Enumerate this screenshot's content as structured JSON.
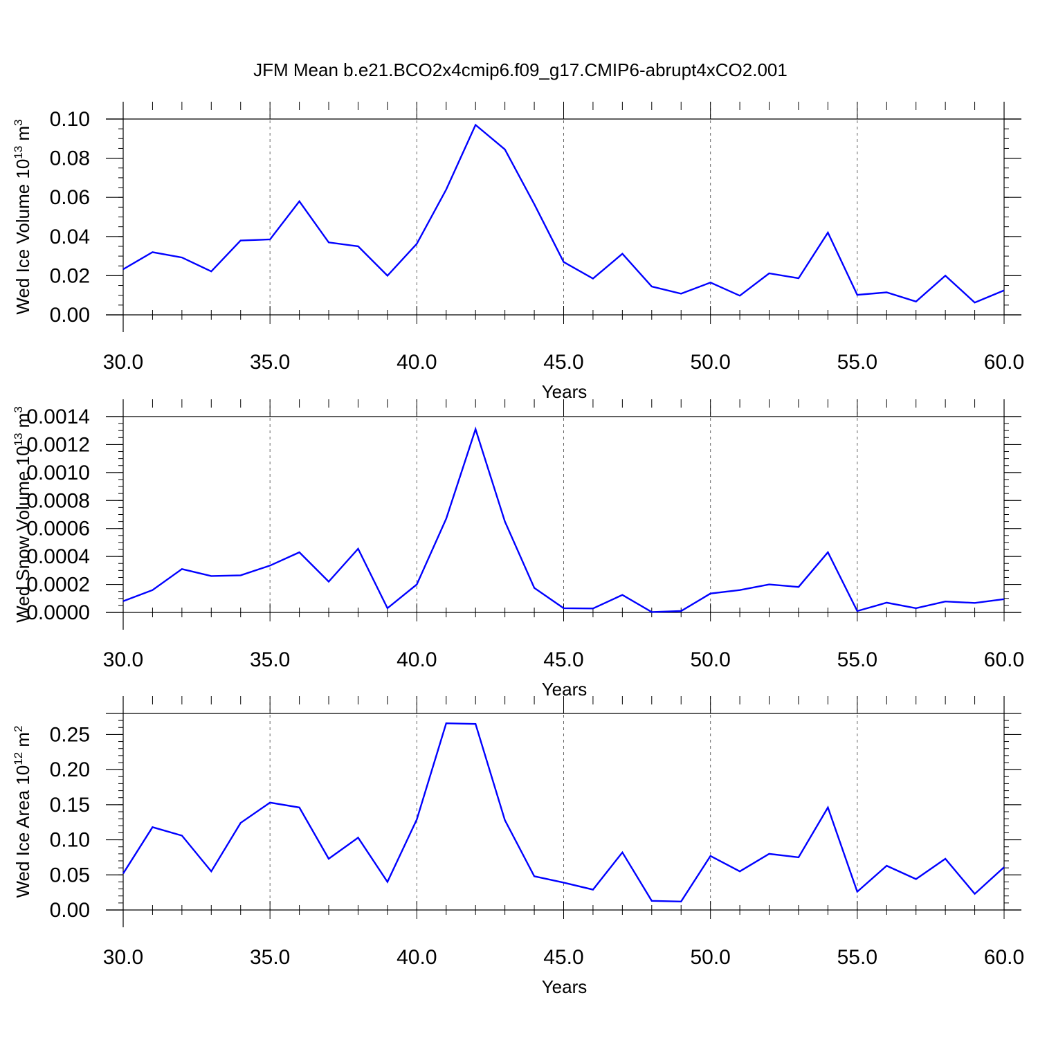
{
  "title": "JFM Mean b.e21.BCO2x4cmip6.f09_g17.CMIP6-abrupt4xCO2.001",
  "chart_data": [
    {
      "type": "line",
      "xlabel": "Years",
      "ylabel": "Wed Ice Volume 10",
      "ylabel_sup1": "13",
      "ylabel_mid": " m",
      "ylabel_sup2": "3",
      "xlim": [
        30,
        60
      ],
      "ylim": [
        0,
        0.1
      ],
      "ylim_top": 0.1,
      "yticks": [
        0.0,
        0.02,
        0.04,
        0.06,
        0.08,
        0.1
      ],
      "ytick_labels": [
        "0.00",
        "0.02",
        "0.04",
        "0.06",
        "0.08",
        "0.10"
      ],
      "ytick_minor_step": 0.005,
      "xticks": [
        30,
        35,
        40,
        45,
        50,
        55,
        60
      ],
      "xtick_labels": [
        "30.0",
        "35.0",
        "40.0",
        "45.0",
        "50.0",
        "55.0",
        "60.0"
      ],
      "grid": "vertical dashed at major x ticks",
      "color": "#0000ff",
      "x": [
        30,
        31,
        32,
        33,
        34,
        35,
        36,
        37,
        38,
        39,
        40,
        41,
        42,
        43,
        44,
        45,
        46,
        47,
        48,
        49,
        50,
        51,
        52,
        53,
        54,
        55,
        56,
        57,
        58,
        59,
        60
      ],
      "values": [
        0.0233,
        0.032,
        0.0293,
        0.0222,
        0.038,
        0.0385,
        0.058,
        0.037,
        0.035,
        0.02,
        0.0363,
        0.064,
        0.097,
        0.0845,
        0.0565,
        0.027,
        0.0185,
        0.0312,
        0.0145,
        0.0108,
        0.0165,
        0.0098,
        0.0212,
        0.0187,
        0.042,
        0.0102,
        0.0115,
        0.0068,
        0.02,
        0.0063,
        0.0125
      ]
    },
    {
      "type": "line",
      "xlabel": "Years",
      "ylabel": "Wed Snow Volume 10",
      "ylabel_sup1": "13",
      "ylabel_mid": " m",
      "ylabel_sup2": "3",
      "xlim": [
        30,
        60
      ],
      "ylim": [
        0,
        0.0014
      ],
      "ylim_top": 0.0014,
      "yticks": [
        0.0,
        0.0002,
        0.0004,
        0.0006,
        0.0008,
        0.001,
        0.0012,
        0.0014
      ],
      "ytick_labels": [
        "0.0000",
        "0.0002",
        "0.0004",
        "0.0006",
        "0.0008",
        "0.0010",
        "0.0012",
        "0.0014"
      ],
      "ytick_minor_step": 5e-05,
      "xticks": [
        30,
        35,
        40,
        45,
        50,
        55,
        60
      ],
      "xtick_labels": [
        "30.0",
        "35.0",
        "40.0",
        "45.0",
        "50.0",
        "55.0",
        "60.0"
      ],
      "grid": "vertical dashed at major x ticks",
      "color": "#0000ff",
      "x": [
        30,
        31,
        32,
        33,
        34,
        35,
        36,
        37,
        38,
        39,
        40,
        41,
        42,
        43,
        44,
        45,
        46,
        47,
        48,
        49,
        50,
        51,
        52,
        53,
        54,
        55,
        56,
        57,
        58,
        59,
        60
      ],
      "values": [
        8e-05,
        0.00016,
        0.00031,
        0.00026,
        0.000265,
        0.000335,
        0.00043,
        0.00022,
        0.000455,
        3e-05,
        0.0002,
        0.00067,
        0.00131,
        0.00065,
        0.000175,
        3e-05,
        2.8e-05,
        0.000125,
        3e-06,
        1e-05,
        0.000135,
        0.00016,
        0.0002,
        0.000182,
        0.00043,
        1e-05,
        7e-05,
        3e-05,
        7.8e-05,
        6.8e-05,
        9.5e-05
      ]
    },
    {
      "type": "line",
      "xlabel": "Years",
      "ylabel": "Wed Ice Area 10",
      "ylabel_sup1": "12",
      "ylabel_mid": " m",
      "ylabel_sup2": "2",
      "xlim": [
        30,
        60
      ],
      "ylim": [
        0,
        0.28
      ],
      "ylim_top": 0.28,
      "yticks": [
        0.0,
        0.05,
        0.1,
        0.15,
        0.2,
        0.25
      ],
      "ytick_labels": [
        "0.00",
        "0.05",
        "0.10",
        "0.15",
        "0.20",
        "0.25"
      ],
      "ytick_minor_step": 0.01,
      "xticks": [
        30,
        35,
        40,
        45,
        50,
        55,
        60
      ],
      "xtick_labels": [
        "30.0",
        "35.0",
        "40.0",
        "45.0",
        "50.0",
        "55.0",
        "60.0"
      ],
      "grid": "vertical dashed at major x ticks",
      "color": "#0000ff",
      "x": [
        30,
        31,
        32,
        33,
        34,
        35,
        36,
        37,
        38,
        39,
        40,
        41,
        42,
        43,
        44,
        45,
        46,
        47,
        48,
        49,
        50,
        51,
        52,
        53,
        54,
        55,
        56,
        57,
        58,
        59,
        60
      ],
      "values": [
        0.052,
        0.118,
        0.106,
        0.055,
        0.124,
        0.153,
        0.146,
        0.073,
        0.103,
        0.04,
        0.129,
        0.266,
        0.265,
        0.128,
        0.048,
        0.039,
        0.029,
        0.082,
        0.013,
        0.012,
        0.077,
        0.055,
        0.08,
        0.075,
        0.146,
        0.026,
        0.063,
        0.044,
        0.073,
        0.023,
        0.061
      ]
    }
  ]
}
